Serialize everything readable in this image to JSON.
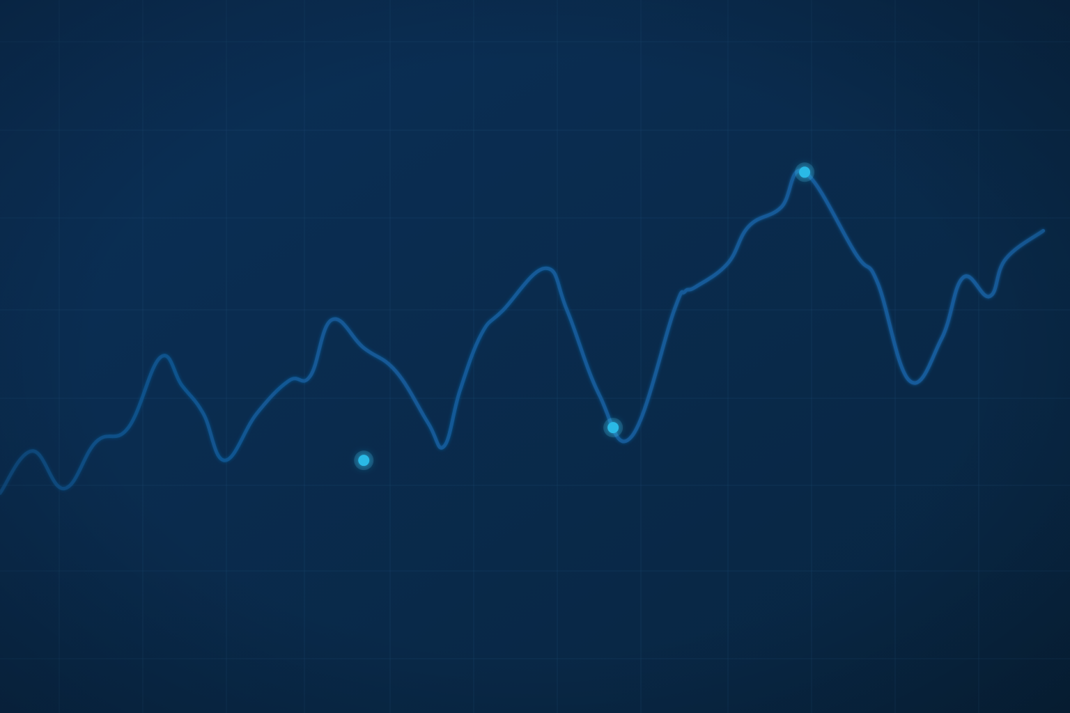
{
  "chart_data": {
    "type": "line",
    "title": "",
    "xlabel": "",
    "ylabel": "",
    "grid": true,
    "legend": "none",
    "xlim": [
      0,
      100
    ],
    "ylim": [
      0,
      100
    ],
    "series": [
      {
        "x": [
          0,
          3,
          6,
          9,
          12,
          15,
          17,
          19,
          21,
          24,
          27,
          29,
          31,
          34,
          37,
          40,
          41.5,
          43,
          45,
          47,
          51,
          53,
          56,
          59,
          63,
          64,
          65,
          68,
          70,
          73,
          75.2,
          80,
          82,
          85,
          88,
          90,
          92.5,
          94,
          97.5
        ],
        "y": [
          27,
          36,
          28,
          38,
          41,
          56,
          50,
          44,
          34,
          44,
          51,
          52,
          64,
          58,
          53,
          42,
          37,
          49,
          61,
          66,
          75,
          66,
          48,
          39,
          66,
          70,
          71,
          76,
          84,
          88,
          95.5,
          78,
          72,
          51,
          60,
          73,
          69,
          77,
          83
        ]
      }
    ],
    "highlighted_points": [
      {
        "x": 34,
        "y": 34
      },
      {
        "x": 57.3,
        "y": 41
      },
      {
        "x": 75.2,
        "y": 95.5
      }
    ]
  },
  "colors": {
    "background_top": "#0b3058",
    "background_bottom": "#082540",
    "grid": "#1c4b72",
    "line": "#135b9a",
    "marker": "#2bb9e6",
    "marker_glow": "#4fd4ff"
  }
}
